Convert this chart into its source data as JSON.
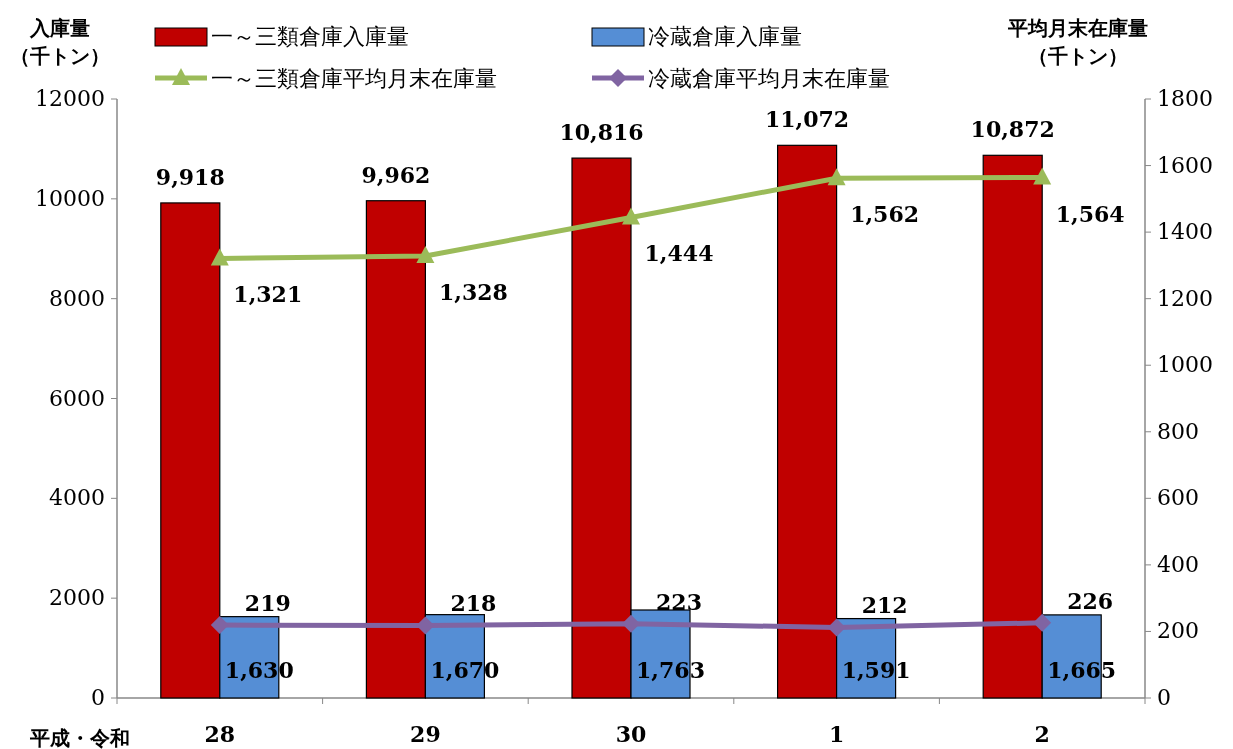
{
  "chart_data": {
    "type": "bar",
    "categories": [
      "28",
      "29",
      "30",
      "1",
      "2"
    ],
    "xlabel": "平成・令和",
    "ylabel": "入庫量（千トン）",
    "y2label": "平均月末在庫量（千トン）",
    "series": [
      {
        "name": "一～三類倉庫入庫量",
        "color": "#c00000",
        "values": [
          9918,
          9962,
          10816,
          11072,
          10872
        ],
        "value_labels": [
          "9,918",
          "9,962",
          "10,816",
          "11,072",
          "10,872"
        ]
      },
      {
        "name": "冷蔵倉庫入庫量",
        "color": "#558ed5",
        "values": [
          1630,
          1670,
          1763,
          1591,
          1665
        ],
        "value_labels": [
          "1,630",
          "1,670",
          "1,763",
          "1,591",
          "1,665"
        ]
      },
      {
        "name": "一～三類倉庫平均月末在庫量",
        "type": "line",
        "axis": "y2",
        "marker": "triangle",
        "color": "#9bbb59",
        "values": [
          1321,
          1328,
          1444,
          1562,
          1564
        ],
        "value_labels": [
          "1,321",
          "1,328",
          "1,444",
          "1,562",
          "1,564"
        ]
      },
      {
        "name": "冷蔵倉庫平均月末在庫量",
        "type": "line",
        "axis": "y2",
        "marker": "diamond",
        "color": "#8064a2",
        "values": [
          219,
          218,
          223,
          212,
          226
        ],
        "value_labels": [
          "219",
          "218",
          "223",
          "212",
          "226"
        ]
      }
    ],
    "ylim": [
      0,
      12000
    ],
    "yticks": [
      0,
      2000,
      4000,
      6000,
      8000,
      10000,
      12000
    ],
    "y2lim": [
      0,
      1800
    ],
    "y2ticks": [
      0,
      200,
      400,
      600,
      800,
      1000,
      1200,
      1400,
      1600,
      1800
    ],
    "legend": "top"
  }
}
